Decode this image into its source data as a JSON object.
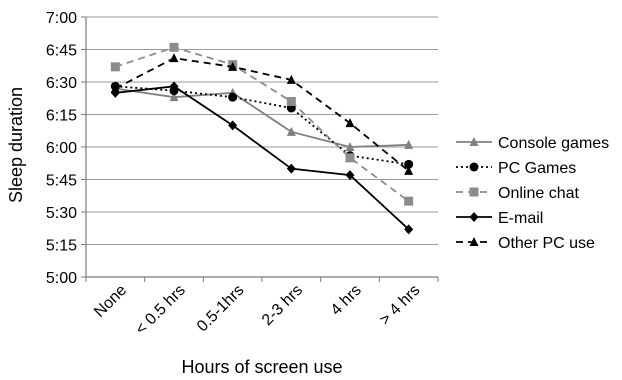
{
  "chart_data": {
    "type": "line",
    "title": "",
    "xlabel": "Hours of screen use",
    "ylabel": "Sleep duration",
    "categories": [
      "None",
      "< 0.5 hrs",
      "0.5-1hrs",
      "2-3 hrs",
      "4 hrs",
      "> 4 hrs"
    ],
    "y_unit": "minutes after 5:00",
    "ylim": [
      0,
      120
    ],
    "y_ticks": [
      0,
      15,
      30,
      45,
      60,
      75,
      90,
      105,
      120
    ],
    "y_tick_labels": [
      "5:00",
      "5:15",
      "5:30",
      "5:45",
      "6:00",
      "6:15",
      "6:30",
      "6:45",
      "7:00"
    ],
    "grid": "horizontal",
    "legend_position": "right",
    "series": [
      {
        "name": "Console games",
        "values": [
          87,
          83,
          85,
          67,
          60,
          61
        ],
        "color": "#808080",
        "dash": "solid",
        "marker": "triangle"
      },
      {
        "name": "PC Games",
        "values": [
          88,
          86,
          83,
          78,
          56,
          52
        ],
        "color": "#000000",
        "dash": "dotted",
        "marker": "circle"
      },
      {
        "name": "Online chat",
        "values": [
          97,
          106,
          98,
          81,
          55,
          35
        ],
        "color": "#8c8c8c",
        "dash": "dashed",
        "marker": "square"
      },
      {
        "name": "E-mail",
        "values": [
          85,
          88,
          70,
          50,
          47,
          22
        ],
        "color": "#000000",
        "dash": "solid",
        "marker": "diamond"
      },
      {
        "name": "Other PC use",
        "values": [
          87,
          101,
          97,
          91,
          71,
          49
        ],
        "color": "#000000",
        "dash": "dashed",
        "marker": "triangle"
      }
    ]
  }
}
